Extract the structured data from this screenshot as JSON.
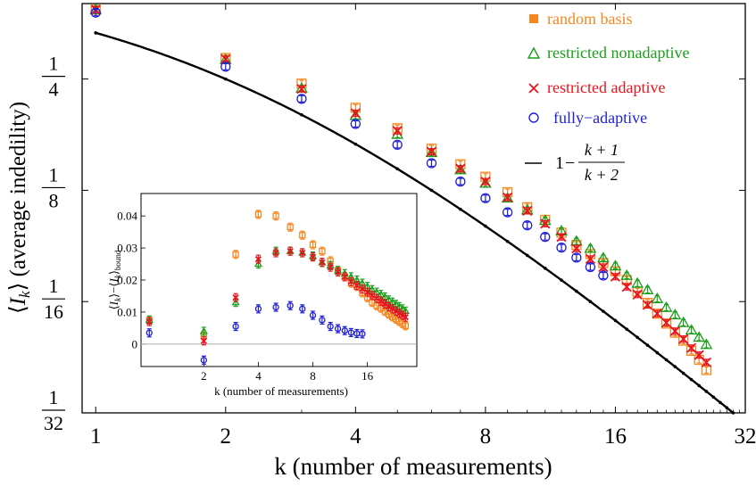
{
  "chart_data": {
    "type": "scatter",
    "scale": "log-log (base 2)",
    "xlabel": "k (number of measurements)",
    "ylabel": "⟨I_k⟩ (average indedility)",
    "ylabel_parts": {
      "bracket_open": "⟨",
      "var": "I",
      "sub": "k",
      "bracket_close": "⟩",
      "rest": " (average indedility)"
    },
    "xlim": [
      0.93,
      32
    ],
    "ylim": [
      0.03125,
      0.4
    ],
    "xticks": [
      {
        "value": 1,
        "label": "1"
      },
      {
        "value": 2,
        "label": "2"
      },
      {
        "value": 4,
        "label": "4"
      },
      {
        "value": 8,
        "label": "8"
      },
      {
        "value": 16,
        "label": "16"
      },
      {
        "value": 32,
        "label": "32"
      }
    ],
    "yticks": [
      {
        "value": 0.25,
        "num": "1",
        "den": "4"
      },
      {
        "value": 0.125,
        "num": "1",
        "den": "8"
      },
      {
        "value": 0.0625,
        "num": "1",
        "den": "16"
      },
      {
        "value": 0.03125,
        "num": "1",
        "den": "32"
      }
    ],
    "legend": {
      "position": "top-right",
      "entries": [
        {
          "label": "random basis",
          "marker": "filled-square",
          "color": "#f5871f"
        },
        {
          "label": "restricted nonadaptive",
          "marker": "triangle",
          "color": "#1a9e1a"
        },
        {
          "label": "restricted adaptive",
          "marker": "x",
          "color": "#e8141e"
        },
        {
          "label": "fully−adaptive",
          "marker": "circle",
          "color": "#1f1fd6"
        },
        {
          "label": "1 − (k + 1)/(k + 2)",
          "marker": "line",
          "color": "#000000",
          "parts": {
            "one": "1",
            "minus": "−",
            "num": "k + 1",
            "den": "k + 2"
          }
        }
      ]
    },
    "series": [
      {
        "name": "random basis",
        "color": "#f5871f",
        "marker": "open-square",
        "x": [
          1,
          2,
          3,
          4,
          5,
          6,
          7,
          8,
          9,
          10,
          11,
          12,
          13,
          14,
          15,
          16,
          17,
          18,
          19,
          20,
          21,
          22,
          23,
          24,
          25,
          26
        ],
        "y": [
          0.385,
          0.285,
          0.243,
          0.209,
          0.184,
          0.162,
          0.147,
          0.136,
          0.1235,
          0.1125,
          0.104,
          0.096,
          0.089,
          0.084,
          0.0795,
          0.0755,
          0.0715,
          0.0665,
          0.062,
          0.058,
          0.0545,
          0.0515,
          0.049,
          0.046,
          0.0435,
          0.0408
        ]
      },
      {
        "name": "restricted nonadaptive",
        "color": "#1a9e1a",
        "marker": "triangle",
        "x": [
          1,
          2,
          3,
          4,
          5,
          6,
          7,
          8,
          9,
          10,
          11,
          12,
          13,
          14,
          15,
          16,
          17,
          18,
          19,
          20,
          21,
          22,
          23,
          24,
          25,
          26
        ],
        "y": [
          0.385,
          0.282,
          0.236,
          0.199,
          0.177,
          0.158,
          0.142,
          0.1305,
          0.119,
          0.1105,
          0.1035,
          0.097,
          0.091,
          0.087,
          0.082,
          0.078,
          0.0735,
          0.07,
          0.0672,
          0.0636,
          0.0602,
          0.0575,
          0.0548,
          0.0523,
          0.05,
          0.0478
        ]
      },
      {
        "name": "restricted adaptive",
        "color": "#e8141e",
        "marker": "x",
        "x": [
          1,
          2,
          3,
          4,
          5,
          6,
          7,
          8,
          9,
          10,
          11,
          12,
          13,
          14,
          15,
          16,
          17,
          18,
          19,
          20,
          21,
          22,
          23,
          24,
          25,
          26
        ],
        "y": [
          0.385,
          0.283,
          0.235,
          0.202,
          0.181,
          0.159,
          0.143,
          0.132,
          0.1195,
          0.11,
          0.1015,
          0.0935,
          0.087,
          0.0815,
          0.0775,
          0.073,
          0.0685,
          0.0653,
          0.0612,
          0.058,
          0.0548,
          0.052,
          0.0495,
          0.0468,
          0.0448,
          0.0428
        ]
      },
      {
        "name": "fully-adaptive",
        "color": "#1f1fd6",
        "marker": "circle",
        "x": [
          1,
          2,
          3,
          4,
          5,
          6,
          7,
          8,
          9,
          10,
          11,
          12,
          13,
          14,
          15
        ],
        "y": [
          0.378,
          0.27,
          0.221,
          0.189,
          0.166,
          0.148,
          0.132,
          0.119,
          0.109,
          0.1005,
          0.0935,
          0.0875,
          0.0822,
          0.0775,
          0.0735
        ]
      }
    ],
    "bound_curve": {
      "name": "1 − (k+1)/(k+2)",
      "formula": "1/(k+2)",
      "color": "#000000"
    },
    "inset": {
      "xlabel": "k (number of measurements)",
      "ylabel": "⟨I_k⟩−⟨I_k⟩_bound",
      "ylabel_parts": {
        "b1": "⟨",
        "var1": "I",
        "sub1": "k",
        "b2": "⟩−⟨",
        "var2": "I",
        "sub2": "k",
        "b3": "⟩",
        "sub3": "bound"
      },
      "xlim": [
        0.9,
        30
      ],
      "ylim": [
        -0.007,
        0.047
      ],
      "xticks": [
        {
          "value": 2,
          "label": "2"
        },
        {
          "value": 4,
          "label": "4"
        },
        {
          "value": 8,
          "label": "8"
        },
        {
          "value": 16,
          "label": "16"
        }
      ],
      "yticks": [
        {
          "value": 0,
          "label": "0"
        },
        {
          "value": 0.01,
          "label": "0.01"
        },
        {
          "value": 0.02,
          "label": "0.02"
        },
        {
          "value": 0.03,
          "label": "0.03"
        },
        {
          "value": 0.04,
          "label": "0.04"
        }
      ],
      "series": [
        {
          "name": "random basis",
          "color": "#f5871f",
          "marker": "open-square",
          "x": [
            1,
            2,
            3,
            4,
            5,
            6,
            7,
            8,
            9,
            10,
            11,
            12,
            13,
            14,
            15,
            16,
            17,
            18,
            19,
            20,
            21,
            22,
            23,
            24,
            25,
            26
          ],
          "y": [
            0.0075,
            0.0025,
            0.028,
            0.0405,
            0.04,
            0.0365,
            0.034,
            0.031,
            0.029,
            0.026,
            0.023,
            0.021,
            0.019,
            0.018,
            0.016,
            0.0145,
            0.013,
            0.012,
            0.0112,
            0.0102,
            0.0093,
            0.0085,
            0.0078,
            0.0071,
            0.0064,
            0.0057
          ]
        },
        {
          "name": "restricted nonadaptive",
          "color": "#1a9e1a",
          "marker": "triangle",
          "x": [
            1,
            2,
            3,
            4,
            5,
            6,
            7,
            8,
            9,
            10,
            11,
            12,
            13,
            14,
            15,
            16,
            17,
            18,
            19,
            20,
            21,
            22,
            23,
            24,
            25,
            26
          ],
          "y": [
            0.0075,
            0.004,
            0.013,
            0.025,
            0.029,
            0.029,
            0.0285,
            0.0275,
            0.0255,
            0.0245,
            0.023,
            0.022,
            0.021,
            0.02,
            0.019,
            0.018,
            0.017,
            0.0162,
            0.0155,
            0.0147,
            0.0138,
            0.0131,
            0.0124,
            0.0117,
            0.011,
            0.0103
          ]
        },
        {
          "name": "restricted adaptive",
          "color": "#e8141e",
          "marker": "x",
          "x": [
            1,
            2,
            3,
            4,
            5,
            6,
            7,
            8,
            9,
            10,
            11,
            12,
            13,
            14,
            15,
            16,
            17,
            18,
            19,
            20,
            21,
            22,
            23,
            24,
            25,
            26
          ],
          "y": [
            0.007,
            0.001,
            0.0145,
            0.0265,
            0.0285,
            0.029,
            0.0285,
            0.0272,
            0.0255,
            0.024,
            0.0225,
            0.021,
            0.0195,
            0.0183,
            0.0172,
            0.0162,
            0.0152,
            0.0143,
            0.0134,
            0.0125,
            0.0117,
            0.011,
            0.0103,
            0.0096,
            0.009,
            0.0084
          ]
        },
        {
          "name": "fully-adaptive",
          "color": "#1f1fd6",
          "marker": "circle",
          "x": [
            1,
            2,
            3,
            4,
            5,
            6,
            7,
            8,
            9,
            10,
            11,
            12,
            13,
            14,
            15
          ],
          "y": [
            0.0035,
            -0.005,
            0.0055,
            0.011,
            0.0115,
            0.012,
            0.011,
            0.009,
            0.0075,
            0.0055,
            0.0048,
            0.0042,
            0.0036,
            0.0033,
            0.0032
          ]
        }
      ]
    }
  }
}
